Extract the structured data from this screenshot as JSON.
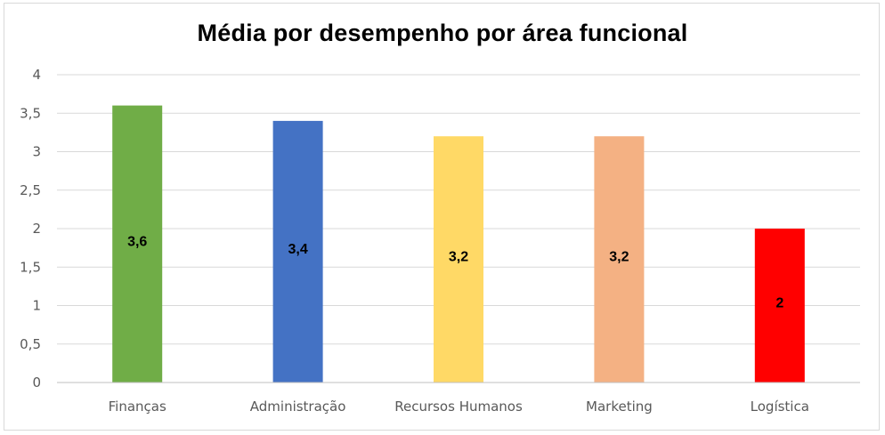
{
  "chart_data": {
    "type": "bar",
    "title": "Média por desempenho por área funcional",
    "xlabel": "",
    "ylabel": "",
    "categories": [
      "Finanças",
      "Administração",
      "Recursos Humanos",
      "Marketing",
      "Logística"
    ],
    "values": [
      3.6,
      3.4,
      3.2,
      3.2,
      2
    ],
    "data_labels": [
      "3,6",
      "3,4",
      "3,2",
      "3,2",
      "2"
    ],
    "bar_colors": [
      "#70ad47",
      "#4472c4",
      "#ffd966",
      "#f4b183",
      "#ff0000"
    ],
    "ylim": [
      0,
      4
    ],
    "yticks": [
      {
        "value": 0,
        "label": "0"
      },
      {
        "value": 0.5,
        "label": "0,5"
      },
      {
        "value": 1,
        "label": "1"
      },
      {
        "value": 1.5,
        "label": "1,5"
      },
      {
        "value": 2,
        "label": "2"
      },
      {
        "value": 2.5,
        "label": "2,5"
      },
      {
        "value": 3,
        "label": "3"
      },
      {
        "value": 3.5,
        "label": "3,5"
      },
      {
        "value": 4,
        "label": "4"
      }
    ],
    "grid": true,
    "legend": "none"
  }
}
